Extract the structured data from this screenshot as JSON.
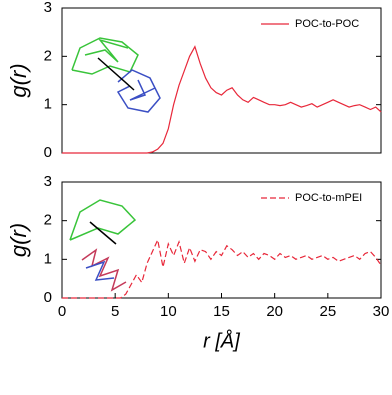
{
  "chart_data": [
    {
      "type": "line",
      "ylabel": "g(r)",
      "xlim": [
        0,
        30
      ],
      "ylim": [
        0,
        3
      ],
      "yticks": [
        0,
        1,
        2,
        3
      ],
      "legend": "upper right",
      "series": [
        {
          "name": "POC-to-POC",
          "color": "#e8283a",
          "dash": "solid",
          "x": [
            0,
            0.5,
            1,
            1.5,
            2,
            2.5,
            3,
            3.5,
            4,
            4.5,
            5,
            5.5,
            6,
            6.5,
            7,
            7.5,
            8,
            8.5,
            9,
            9.5,
            10,
            10.5,
            11,
            11.5,
            12,
            12.5,
            13,
            13.5,
            14,
            14.5,
            15,
            15.5,
            16,
            16.5,
            17,
            17.5,
            18,
            18.5,
            19,
            19.5,
            20,
            20.5,
            21,
            21.5,
            22,
            22.5,
            23,
            23.5,
            24,
            24.5,
            25,
            25.5,
            26,
            26.5,
            27,
            27.5,
            28,
            28.5,
            29,
            29.5,
            30
          ],
          "values": [
            0,
            0,
            0,
            0,
            0,
            0,
            0,
            0,
            0,
            0,
            0,
            0,
            0,
            0,
            0,
            0,
            0,
            0.02,
            0.08,
            0.2,
            0.5,
            1.0,
            1.4,
            1.7,
            2.0,
            2.2,
            1.85,
            1.55,
            1.35,
            1.25,
            1.2,
            1.3,
            1.35,
            1.2,
            1.1,
            1.05,
            1.15,
            1.1,
            1.05,
            1.0,
            1.0,
            0.98,
            1.0,
            1.05,
            1.0,
            0.95,
            0.98,
            1.02,
            0.95,
            1.0,
            1.05,
            1.1,
            1.05,
            1.0,
            0.95,
            0.98,
            1.0,
            0.95,
            0.9,
            0.95,
            0.85
          ]
        }
      ]
    },
    {
      "type": "line",
      "ylabel": "g(r)",
      "xlabel": "r [Å]",
      "xlim": [
        0,
        30
      ],
      "xticks": [
        0,
        5,
        10,
        15,
        20,
        25,
        30
      ],
      "ylim": [
        0,
        3
      ],
      "yticks": [
        0,
        1,
        2,
        3
      ],
      "legend": "upper right",
      "series": [
        {
          "name": "POC-to-mPEI",
          "color": "#e8283a",
          "dash": "dashed",
          "x": [
            0,
            0.5,
            1,
            1.5,
            2,
            2.5,
            3,
            3.5,
            4,
            4.5,
            5,
            5.5,
            6,
            6.5,
            7,
            7.5,
            8,
            8.5,
            9,
            9.5,
            10,
            10.5,
            11,
            11.5,
            12,
            12.5,
            13,
            13.5,
            14,
            14.5,
            15,
            15.5,
            16,
            16.5,
            17,
            17.5,
            18,
            18.5,
            19,
            19.5,
            20,
            20.5,
            21,
            21.5,
            22,
            22.5,
            23,
            23.5,
            24,
            24.5,
            25,
            25.5,
            26,
            26.5,
            27,
            27.5,
            28,
            28.5,
            29,
            29.5,
            30
          ],
          "values": [
            0,
            0,
            0,
            0,
            0,
            0,
            0,
            0,
            0,
            0,
            0,
            0,
            0.1,
            0.35,
            0.6,
            0.4,
            0.9,
            1.2,
            1.5,
            0.8,
            1.4,
            1.1,
            1.45,
            0.9,
            1.3,
            0.95,
            1.25,
            1.2,
            1.0,
            1.2,
            1.1,
            1.35,
            1.25,
            1.1,
            1.2,
            1.05,
            1.15,
            1.0,
            1.15,
            1.1,
            1.0,
            1.15,
            1.05,
            1.1,
            1.0,
            1.05,
            1.1,
            1.0,
            1.05,
            1.1,
            1.0,
            1.05,
            0.95,
            1.0,
            1.05,
            1.1,
            1.0,
            1.15,
            1.2,
            1.05,
            0.85
          ]
        }
      ]
    }
  ]
}
